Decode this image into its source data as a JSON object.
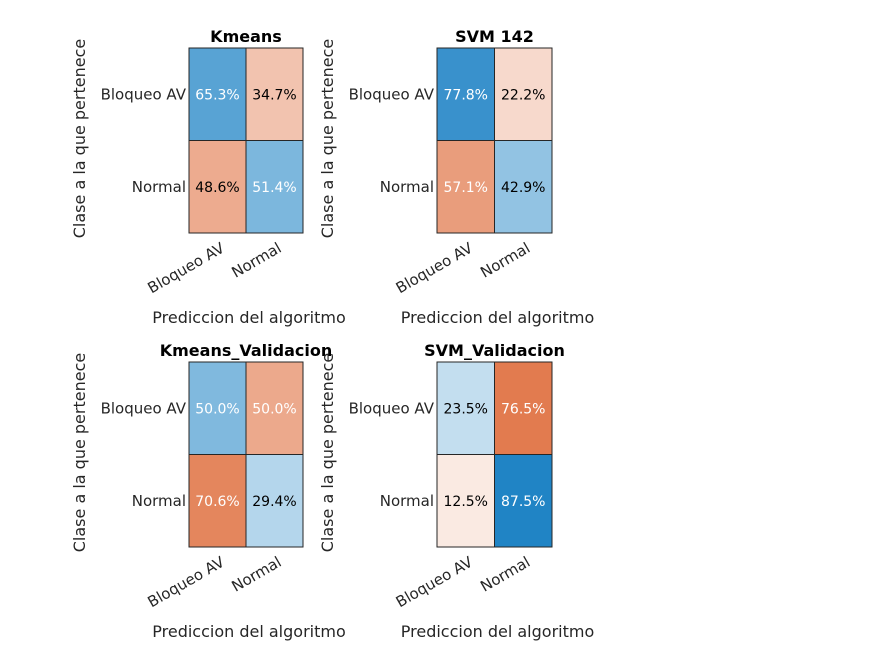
{
  "chart_data": [
    {
      "type": "heatmap",
      "title": "Kmeans",
      "xlabel": "Prediccion del algoritmo",
      "ylabel": "Clase a la que pertenece",
      "x_categories": [
        "Bloqueo AV",
        "Normal"
      ],
      "y_categories": [
        "Bloqueo AV",
        "Normal"
      ],
      "values": [
        [
          65.3,
          34.7
        ],
        [
          48.6,
          51.4
        ]
      ],
      "labels": [
        [
          "65.3%",
          "34.7%"
        ],
        [
          "48.6%",
          "51.4%"
        ]
      ],
      "correct_color": "#0072BD",
      "error_color": "#D95319"
    },
    {
      "type": "heatmap",
      "title": "SVM 142",
      "xlabel": "Prediccion del algoritmo",
      "ylabel": "Clase a la que pertenece",
      "x_categories": [
        "Bloqueo AV",
        "Normal"
      ],
      "y_categories": [
        "Bloqueo AV",
        "Normal"
      ],
      "values": [
        [
          77.8,
          22.2
        ],
        [
          57.1,
          42.9
        ]
      ],
      "labels": [
        [
          "77.8%",
          "22.2%"
        ],
        [
          "57.1%",
          "42.9%"
        ]
      ],
      "correct_color": "#0072BD",
      "error_color": "#D95319"
    },
    {
      "type": "heatmap",
      "title": "Kmeans_Validacion",
      "xlabel": "Prediccion del algoritmo",
      "ylabel": "Clase a la que pertenece",
      "x_categories": [
        "Bloqueo AV",
        "Normal"
      ],
      "y_categories": [
        "Bloqueo AV",
        "Normal"
      ],
      "values": [
        [
          50.0,
          50.0
        ],
        [
          70.6,
          29.4
        ]
      ],
      "labels": [
        [
          "50.0%",
          "50.0%"
        ],
        [
          "70.6%",
          "29.4%"
        ]
      ],
      "correct_color": "#0072BD",
      "error_color": "#D95319"
    },
    {
      "type": "heatmap",
      "title": "SVM_Validacion",
      "xlabel": "Prediccion del algoritmo",
      "ylabel": "Clase a la que pertenece",
      "x_categories": [
        "Bloqueo AV",
        "Normal"
      ],
      "y_categories": [
        "Bloqueo AV",
        "Normal"
      ],
      "values": [
        [
          23.5,
          76.5
        ],
        [
          12.5,
          87.5
        ]
      ],
      "labels": [
        [
          "23.5%",
          "76.5%"
        ],
        [
          "12.5%",
          "87.5%"
        ]
      ],
      "correct_color": "#0072BD",
      "error_color": "#D95319"
    }
  ]
}
